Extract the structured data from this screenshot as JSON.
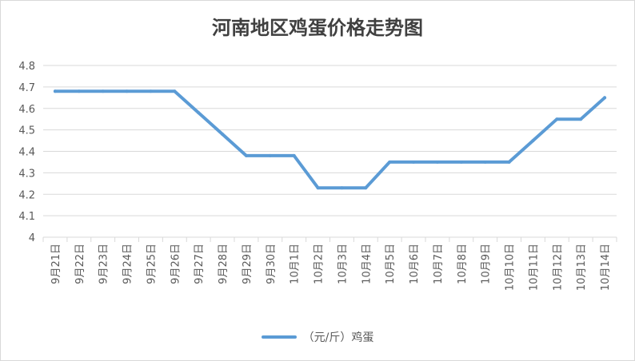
{
  "chart_data": {
    "type": "line",
    "title": "河南地区鸡蛋价格走势图",
    "categories": [
      "9月21日",
      "9月22日",
      "9月23日",
      "9月24日",
      "9月25日",
      "9月26日",
      "9月27日",
      "9月28日",
      "9月29日",
      "9月30日",
      "10月1日",
      "10月2日",
      "10月3日",
      "10月4日",
      "10月5日",
      "10月6日",
      "10月7日",
      "10月8日",
      "10月9日",
      "10月10日",
      "10月11日",
      "10月12日",
      "10月13日",
      "10月14日"
    ],
    "series": [
      {
        "name": "（元/斤）鸡蛋",
        "color": "#5b9bd5",
        "values": [
          4.68,
          4.68,
          4.68,
          4.68,
          4.68,
          4.68,
          4.58,
          4.48,
          4.38,
          4.38,
          4.38,
          4.23,
          4.23,
          4.23,
          4.35,
          4.35,
          4.35,
          4.35,
          4.35,
          4.35,
          4.45,
          4.55,
          4.55,
          4.65
        ]
      }
    ],
    "yticks": [
      "4",
      "4.1",
      "4.2",
      "4.3",
      "4.4",
      "4.5",
      "4.6",
      "4.7",
      "4.8"
    ],
    "ylim": [
      4,
      4.8
    ],
    "grid": true,
    "legend_position": "bottom"
  }
}
